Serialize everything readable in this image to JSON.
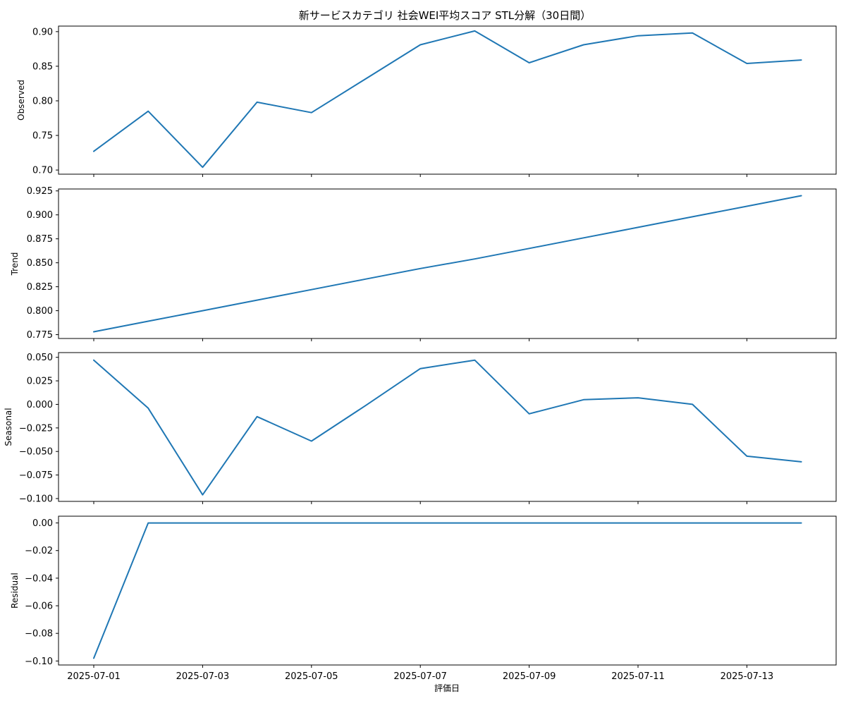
{
  "title": "新サービスカテゴリ 社会WEI平均スコア STL分解（30日間）",
  "xlabel": "評価日",
  "x_tick_labels": [
    "2025-07-01",
    "2025-07-03",
    "2025-07-05",
    "2025-07-07",
    "2025-07-09",
    "2025-07-11",
    "2025-07-13"
  ],
  "line_color": "#1f77b4",
  "chart_data": [
    {
      "type": "line",
      "ylabel": "Observed",
      "x": [
        "2025-07-01",
        "2025-07-02",
        "2025-07-03",
        "2025-07-04",
        "2025-07-05",
        "2025-07-06",
        "2025-07-07",
        "2025-07-08",
        "2025-07-09",
        "2025-07-10",
        "2025-07-11",
        "2025-07-12",
        "2025-07-13",
        "2025-07-14"
      ],
      "values": [
        0.727,
        0.785,
        0.704,
        0.798,
        0.783,
        0.832,
        0.881,
        0.901,
        0.855,
        0.881,
        0.894,
        0.898,
        0.854,
        0.859
      ],
      "ylim": [
        0.694,
        0.908
      ],
      "yticks": [
        0.7,
        0.75,
        0.8,
        0.85,
        0.9
      ],
      "ytick_labels": [
        "0.70",
        "0.75",
        "0.80",
        "0.85",
        "0.90"
      ]
    },
    {
      "type": "line",
      "ylabel": "Trend",
      "x": [
        "2025-07-01",
        "2025-07-02",
        "2025-07-03",
        "2025-07-04",
        "2025-07-05",
        "2025-07-06",
        "2025-07-07",
        "2025-07-08",
        "2025-07-09",
        "2025-07-10",
        "2025-07-11",
        "2025-07-12",
        "2025-07-13",
        "2025-07-14"
      ],
      "values": [
        0.778,
        0.789,
        0.8,
        0.811,
        0.822,
        0.833,
        0.844,
        0.854,
        0.865,
        0.876,
        0.887,
        0.898,
        0.909,
        0.92
      ],
      "ylim": [
        0.771,
        0.927
      ],
      "yticks": [
        0.775,
        0.8,
        0.825,
        0.85,
        0.875,
        0.9,
        0.925
      ],
      "ytick_labels": [
        "0.775",
        "0.800",
        "0.825",
        "0.850",
        "0.875",
        "0.900",
        "0.925"
      ]
    },
    {
      "type": "line",
      "ylabel": "Seasonal",
      "x": [
        "2025-07-01",
        "2025-07-02",
        "2025-07-03",
        "2025-07-04",
        "2025-07-05",
        "2025-07-06",
        "2025-07-07",
        "2025-07-08",
        "2025-07-09",
        "2025-07-10",
        "2025-07-11",
        "2025-07-12",
        "2025-07-13",
        "2025-07-14"
      ],
      "values": [
        0.047,
        -0.004,
        -0.096,
        -0.013,
        -0.039,
        -0.001,
        0.038,
        0.047,
        -0.01,
        0.005,
        0.007,
        0.0,
        -0.055,
        -0.061
      ],
      "ylim": [
        -0.103,
        0.055
      ],
      "yticks": [
        -0.1,
        -0.075,
        -0.05,
        -0.025,
        0.0,
        0.025,
        0.05
      ],
      "ytick_labels": [
        "−0.100",
        "−0.075",
        "−0.050",
        "−0.025",
        "0.000",
        "0.025",
        "0.050"
      ]
    },
    {
      "type": "line",
      "ylabel": "Residual",
      "x": [
        "2025-07-01",
        "2025-07-02",
        "2025-07-03",
        "2025-07-04",
        "2025-07-05",
        "2025-07-06",
        "2025-07-07",
        "2025-07-08",
        "2025-07-09",
        "2025-07-10",
        "2025-07-11",
        "2025-07-12",
        "2025-07-13",
        "2025-07-14"
      ],
      "values": [
        -0.098,
        0.0,
        0.0,
        0.0,
        0.0,
        0.0,
        0.0,
        0.0,
        0.0,
        0.0,
        0.0,
        0.0,
        0.0,
        0.0
      ],
      "ylim": [
        -0.1029,
        0.0049
      ],
      "yticks": [
        -0.1,
        -0.08,
        -0.06,
        -0.04,
        -0.02,
        0.0
      ],
      "ytick_labels": [
        "−0.10",
        "−0.08",
        "−0.06",
        "−0.04",
        "−0.02",
        "0.00"
      ]
    }
  ]
}
